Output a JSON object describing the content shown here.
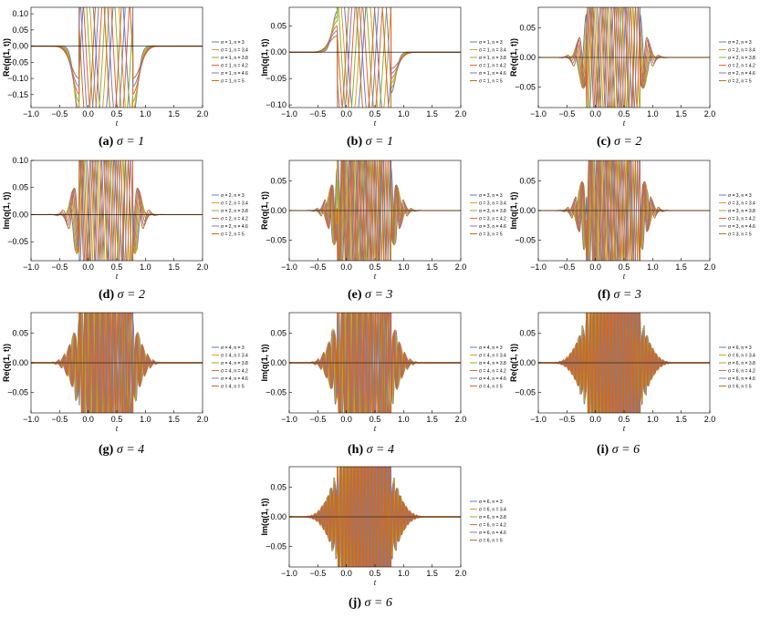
{
  "colors": [
    "#5e81b5",
    "#e19c24",
    "#8fb032",
    "#eb6235",
    "#8778b3",
    "#c56e1a"
  ],
  "chart_data": [
    {
      "type": "line",
      "panel": "(a)",
      "sigma": "1",
      "ylabel": "Re(q(1, t))",
      "xlabel": "t",
      "xlim": [
        -1.0,
        2.0
      ],
      "ylim": [
        -0.19,
        0.12
      ],
      "xticks": [
        "−1.0",
        "−0.5",
        "0.0",
        "0.5",
        "1.0",
        "1.5",
        "2.0"
      ],
      "yticks": [
        0.1,
        0.05,
        0.0,
        -0.05,
        -0.1,
        -0.15
      ],
      "ytick_labels": [
        "0.10",
        "0.05",
        "0.00",
        "−0.05",
        "−0.10",
        "−0.15"
      ],
      "series": [
        {
          "name": "σ = 1, n = 3"
        },
        {
          "name": "σ = 1, n = 3.4"
        },
        {
          "name": "σ = 1, n = 3.8"
        },
        {
          "name": "σ = 1, n = 4.2"
        },
        {
          "name": "σ = 1, n = 4.6"
        },
        {
          "name": "σ = 1, n = 5"
        }
      ],
      "caption_label": "(a)",
      "caption_text": "σ = 1"
    },
    {
      "type": "line",
      "panel": "(b)",
      "sigma": "1",
      "ylabel": "Im(q(1, t))",
      "xlabel": "t",
      "xlim": [
        -1.0,
        2.0
      ],
      "ylim": [
        -0.105,
        0.085
      ],
      "xticks": [
        "−1.0",
        "−0.5",
        "0.0",
        "0.5",
        "1.0",
        "1.5",
        "2.0"
      ],
      "yticks": [
        0.05,
        0.0,
        -0.05,
        -0.1
      ],
      "ytick_labels": [
        "0.05",
        "0.00",
        "−0.05",
        "−0.10"
      ],
      "series": [
        {
          "name": "σ = 1, n = 3"
        },
        {
          "name": "σ = 1, n = 3.4"
        },
        {
          "name": "σ = 1, n = 3.8"
        },
        {
          "name": "σ = 1, n = 4.2"
        },
        {
          "name": "σ = 1, n = 4.6"
        },
        {
          "name": "σ = 1, n = 5"
        }
      ],
      "caption_label": "(b)",
      "caption_text": "σ = 1"
    },
    {
      "type": "line",
      "panel": "(c)",
      "sigma": "2",
      "ylabel": "Re(q(1, t))",
      "xlabel": "t",
      "xlim": [
        -1.0,
        2.0
      ],
      "ylim": [
        -0.085,
        0.085
      ],
      "xticks": [
        "−1.0",
        "−0.5",
        "0.0",
        "0.5",
        "1.0",
        "1.5",
        "2.0"
      ],
      "yticks": [
        0.05,
        0.0,
        -0.05
      ],
      "ytick_labels": [
        "0.05",
        "0.00",
        "−0.05"
      ],
      "series": [
        {
          "name": "σ = 2, n = 3"
        },
        {
          "name": "σ = 2, n = 3.4"
        },
        {
          "name": "σ = 2, n = 3.8"
        },
        {
          "name": "σ = 2, n = 4.2"
        },
        {
          "name": "σ = 2, n = 4.6"
        },
        {
          "name": "σ = 2, n = 5"
        }
      ],
      "caption_label": "(c)",
      "caption_text": "σ = 2"
    },
    {
      "type": "line",
      "panel": "(d)",
      "sigma": "2",
      "ylabel": "Im(q(1, t))",
      "xlabel": "t",
      "xlim": [
        -1.0,
        2.0
      ],
      "ylim": [
        -0.085,
        0.1
      ],
      "xticks": [
        "−1.0",
        "−0.5",
        "0.0",
        "0.5",
        "1.0",
        "1.5",
        "2.0"
      ],
      "yticks": [
        0.1,
        0.05,
        0.0,
        -0.05
      ],
      "ytick_labels": [
        "0.10",
        "0.05",
        "0.00",
        "−0.05"
      ],
      "series": [
        {
          "name": "σ = 2, n = 3"
        },
        {
          "name": "σ = 2, n = 3.4"
        },
        {
          "name": "σ = 2, n = 3.8"
        },
        {
          "name": "σ = 2, n = 4.2"
        },
        {
          "name": "σ = 2, n = 4.6"
        },
        {
          "name": "σ = 2, n = 5"
        }
      ],
      "caption_label": "(d)",
      "caption_text": "σ = 2"
    },
    {
      "type": "line",
      "panel": "(e)",
      "sigma": "3",
      "ylabel": "Re(q(1, t))",
      "xlabel": "t",
      "xlim": [
        -1.0,
        2.0
      ],
      "ylim": [
        -0.085,
        0.085
      ],
      "xticks": [
        "−1.0",
        "−0.5",
        "0.0",
        "0.5",
        "1.0",
        "1.5",
        "2.0"
      ],
      "yticks": [
        0.05,
        0.0,
        -0.05
      ],
      "ytick_labels": [
        "0.05",
        "0.00",
        "−0.05"
      ],
      "series": [
        {
          "name": "σ = 3, n = 3"
        },
        {
          "name": "σ = 3, n = 3.4"
        },
        {
          "name": "σ = 3, n = 3.8"
        },
        {
          "name": "σ = 3, n = 4.2"
        },
        {
          "name": "σ = 3, n = 4.6"
        },
        {
          "name": "σ = 3, n = 5"
        }
      ],
      "caption_label": "(e)",
      "caption_text": "σ = 3"
    },
    {
      "type": "line",
      "panel": "(f)",
      "sigma": "3",
      "ylabel": "Im(q(1, t))",
      "xlabel": "t",
      "xlim": [
        -1.0,
        2.0
      ],
      "ylim": [
        -0.085,
        0.085
      ],
      "xticks": [
        "−1.0",
        "−0.5",
        "0.0",
        "0.5",
        "1.0",
        "1.5",
        "2.0"
      ],
      "yticks": [
        0.05,
        0.0,
        -0.05
      ],
      "ytick_labels": [
        "0.05",
        "0.00",
        "−0.05"
      ],
      "series": [
        {
          "name": "σ = 3, n = 3"
        },
        {
          "name": "σ = 3, n = 3.4"
        },
        {
          "name": "σ = 3, n = 3.8"
        },
        {
          "name": "σ = 3, n = 4.2"
        },
        {
          "name": "σ = 3, n = 4.6"
        },
        {
          "name": "σ = 3, n = 5"
        }
      ],
      "caption_label": "(f)",
      "caption_text": "σ = 3"
    },
    {
      "type": "line",
      "panel": "(g)",
      "sigma": "4",
      "ylabel": "Re(q(1, t))",
      "xlabel": "t",
      "xlim": [
        -1.0,
        2.0
      ],
      "ylim": [
        -0.085,
        0.085
      ],
      "xticks": [
        "−1.0",
        "−0.5",
        "0.0",
        "0.5",
        "1.0",
        "1.5",
        "2.0"
      ],
      "yticks": [
        0.05,
        0.0,
        -0.05
      ],
      "ytick_labels": [
        "0.05",
        "0.00",
        "−0.05"
      ],
      "series": [
        {
          "name": "σ = 4, n = 3"
        },
        {
          "name": "σ = 4, n = 3.4"
        },
        {
          "name": "σ = 4, n = 3.8"
        },
        {
          "name": "σ = 4, n = 4.2"
        },
        {
          "name": "σ = 4, n = 4.6"
        },
        {
          "name": "σ = 4, n = 5"
        }
      ],
      "caption_label": "(g)",
      "caption_text": "σ = 4"
    },
    {
      "type": "line",
      "panel": "(h)",
      "sigma": "4",
      "ylabel": "Im(q(1, t))",
      "xlabel": "t",
      "xlim": [
        -1.0,
        2.0
      ],
      "ylim": [
        -0.085,
        0.085
      ],
      "xticks": [
        "−1.0",
        "−0.5",
        "0.0",
        "0.5",
        "1.0",
        "1.5",
        "2.0"
      ],
      "yticks": [
        0.05,
        0.0,
        -0.05
      ],
      "ytick_labels": [
        "0.05",
        "0.00",
        "−0.05"
      ],
      "series": [
        {
          "name": "σ = 4, n = 3"
        },
        {
          "name": "σ = 4, n = 3.4"
        },
        {
          "name": "σ = 4, n = 3.8"
        },
        {
          "name": "σ = 4, n = 4.2"
        },
        {
          "name": "σ = 4, n = 4.6"
        },
        {
          "name": "σ = 4, n = 5"
        }
      ],
      "caption_label": "(h)",
      "caption_text": "σ = 4"
    },
    {
      "type": "line",
      "panel": "(i)",
      "sigma": "6",
      "ylabel": "Re(q(1, t))",
      "xlabel": "t",
      "xlim": [
        -1.0,
        2.0
      ],
      "ylim": [
        -0.085,
        0.085
      ],
      "xticks": [
        "−1.0",
        "−0.5",
        "0.0",
        "0.5",
        "1.0",
        "1.5",
        "2.0"
      ],
      "yticks": [
        0.05,
        0.0,
        -0.05
      ],
      "ytick_labels": [
        "0.05",
        "0.00",
        "−0.05"
      ],
      "series": [
        {
          "name": "σ = 6, n = 3"
        },
        {
          "name": "σ = 6, n = 3.4"
        },
        {
          "name": "σ = 6, n = 3.8"
        },
        {
          "name": "σ = 6, n = 4.2"
        },
        {
          "name": "σ = 6, n = 4.6"
        },
        {
          "name": "σ = 6, n = 5"
        }
      ],
      "caption_label": "(i)",
      "caption_text": "σ = 6"
    },
    {
      "type": "line",
      "panel": "(j)",
      "sigma": "6",
      "ylabel": "Im(q(1, t))",
      "xlabel": "t",
      "xlim": [
        -1.0,
        2.0
      ],
      "ylim": [
        -0.085,
        0.085
      ],
      "xticks": [
        "−1.0",
        "−0.5",
        "0.0",
        "0.5",
        "1.0",
        "1.5",
        "2.0"
      ],
      "yticks": [
        0.05,
        0.0,
        -0.05
      ],
      "ytick_labels": [
        "0.05",
        "0.00",
        "−0.05"
      ],
      "series": [
        {
          "name": "σ = 6, n = 3"
        },
        {
          "name": "σ = 6, n = 3.4"
        },
        {
          "name": "σ = 6, n = 3.8"
        },
        {
          "name": "σ = 6, n = 4.2"
        },
        {
          "name": "σ = 6, n = 4.6"
        },
        {
          "name": "σ = 6, n = 5"
        }
      ],
      "caption_label": "(j)",
      "caption_text": "σ = 6"
    }
  ]
}
